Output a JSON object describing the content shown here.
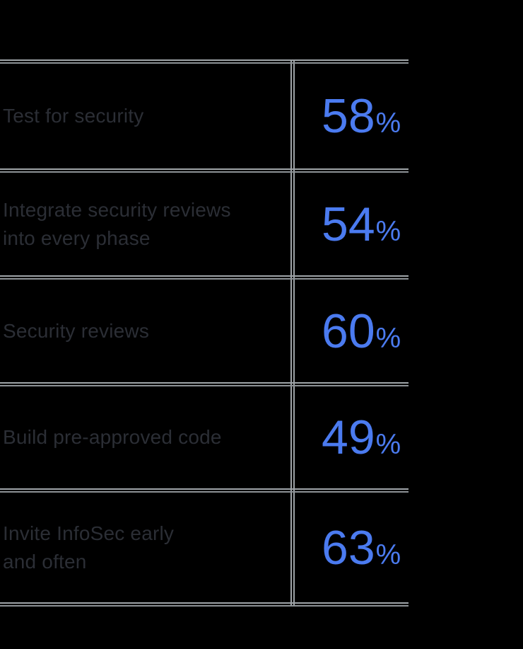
{
  "page": {
    "background_color": "#000000",
    "rule_color": "#9fa4a8",
    "label_color": "#2b2e35",
    "value_color": "#4b7bf0"
  },
  "table": {
    "rows": [
      {
        "label": "Test for security",
        "value": "58",
        "unit": "%"
      },
      {
        "label": "Integrate security reviews\ninto every phase",
        "value": "54",
        "unit": "%"
      },
      {
        "label": "Security reviews",
        "value": "60",
        "unit": "%"
      },
      {
        "label": "Build pre-approved code",
        "value": "49",
        "unit": "%"
      },
      {
        "label": "Invite InfoSec early\nand often",
        "value": "63",
        "unit": "%"
      }
    ]
  },
  "chart_data": {
    "type": "table",
    "categories": [
      "Test for security",
      "Integrate security reviews into every phase",
      "Security reviews",
      "Build pre-approved code",
      "Invite InfoSec early and often"
    ],
    "values": [
      58,
      54,
      60,
      49,
      63
    ],
    "unit": "%",
    "title": "",
    "legend": "none",
    "layout": "two-column table: practice label left, percentage right, double-stroke gray rules on black background"
  }
}
